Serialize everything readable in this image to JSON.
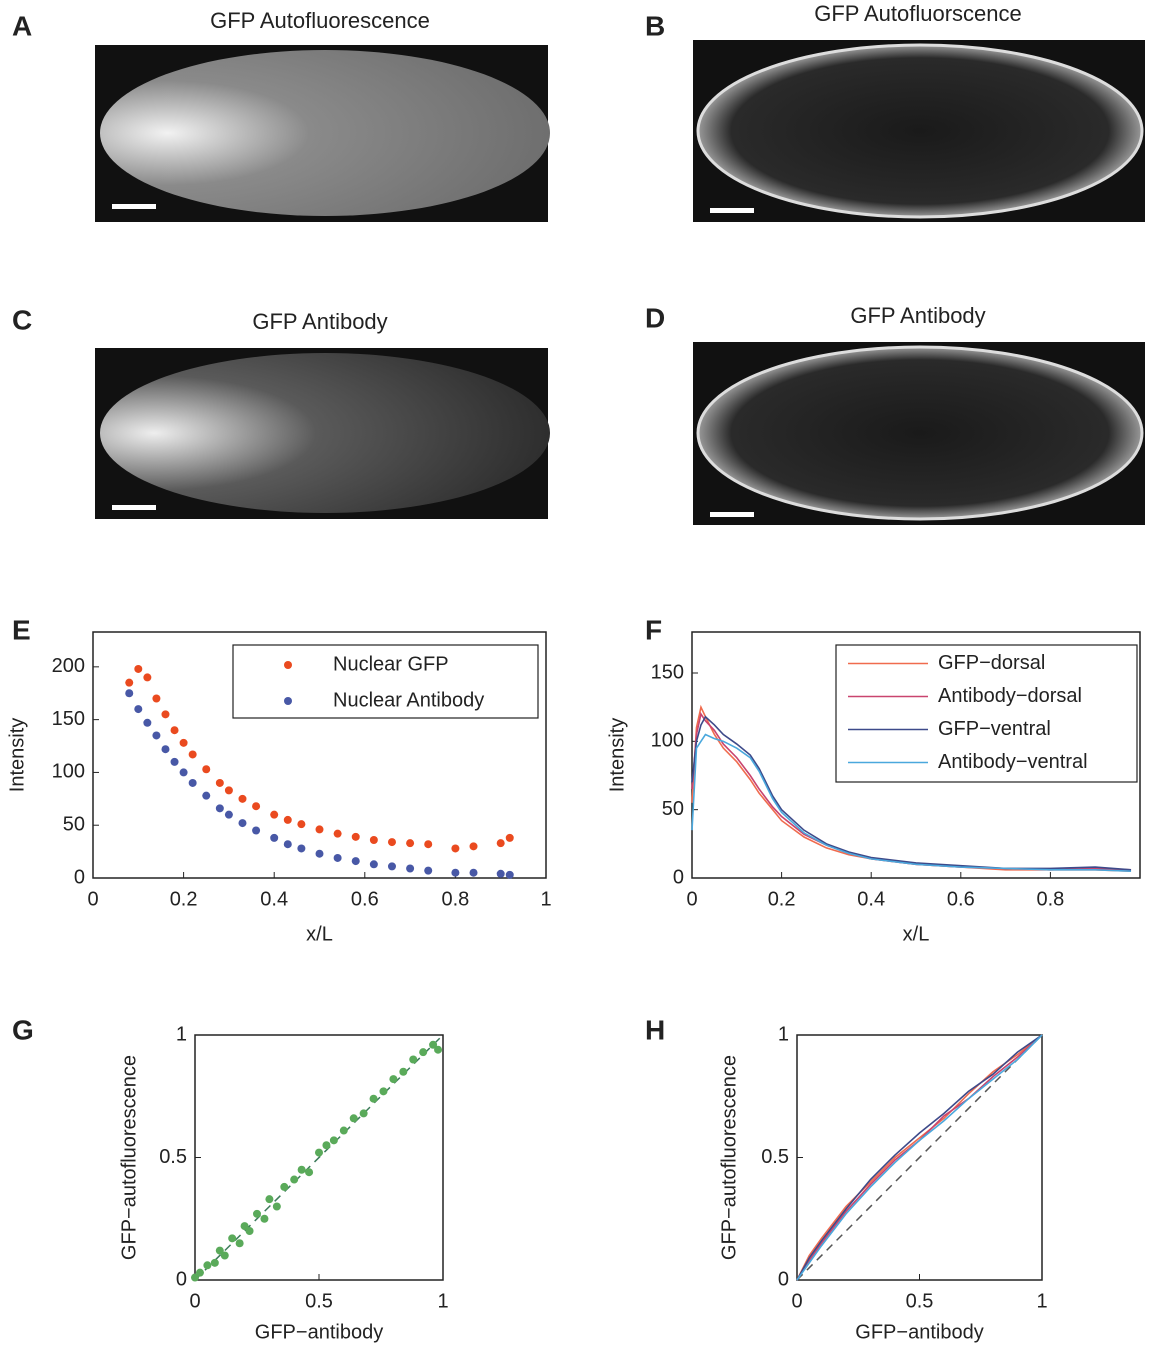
{
  "images": [
    {
      "panel_label": "A",
      "title": "GFP Autofluorescence"
    },
    {
      "panel_label": "B",
      "title": "GFP Autofluorscence"
    },
    {
      "panel_label": "C",
      "title": "GFP Antibody"
    },
    {
      "panel_label": "D",
      "title": "GFP Antibody"
    }
  ],
  "chart_data": [
    {
      "type": "scatter",
      "panel_label": "E",
      "x_label": "x/L",
      "y_label": "Intensity",
      "x": [
        0.08,
        0.1,
        0.12,
        0.14,
        0.16,
        0.18,
        0.2,
        0.22,
        0.25,
        0.28,
        0.3,
        0.33,
        0.36,
        0.4,
        0.43,
        0.46,
        0.5,
        0.54,
        0.58,
        0.62,
        0.66,
        0.7,
        0.74,
        0.8,
        0.84,
        0.9,
        0.92
      ],
      "series": [
        {
          "name": "Nuclear GFP",
          "color": "#ea4a1f",
          "values": [
            185,
            198,
            190,
            170,
            155,
            140,
            128,
            117,
            103,
            90,
            83,
            75,
            68,
            60,
            55,
            51,
            46,
            42,
            39,
            36,
            34,
            33,
            32,
            28,
            30,
            33,
            38
          ]
        },
        {
          "name": "Nuclear Antibody",
          "color": "#4858a6",
          "values": [
            175,
            160,
            147,
            135,
            122,
            110,
            100,
            90,
            78,
            66,
            60,
            52,
            45,
            38,
            32,
            28,
            23,
            19,
            16,
            13,
            11,
            9,
            7,
            5,
            5,
            4,
            3
          ]
        }
      ],
      "xlim": [
        0,
        1
      ],
      "xticks": [
        0,
        0.2,
        0.4,
        0.6,
        0.8,
        1
      ],
      "ylim": [
        0,
        233
      ],
      "yticks": [
        0,
        50,
        100,
        150,
        200
      ],
      "legend": "upper right"
    },
    {
      "type": "line",
      "panel_label": "F",
      "x_label": "x/L",
      "y_label": "Intensity",
      "x": [
        0,
        0.01,
        0.02,
        0.03,
        0.05,
        0.07,
        0.1,
        0.13,
        0.15,
        0.18,
        0.2,
        0.25,
        0.3,
        0.35,
        0.4,
        0.5,
        0.6,
        0.7,
        0.8,
        0.9,
        0.98
      ],
      "series": [
        {
          "name": "GFP−dorsal",
          "color": "#f06b4e",
          "values": [
            55,
            110,
            125,
            118,
            105,
            95,
            85,
            72,
            62,
            50,
            42,
            30,
            22,
            17,
            14,
            10,
            8,
            6,
            6,
            6,
            5
          ]
        },
        {
          "name": "Antibody−dorsal",
          "color": "#c9446f",
          "values": [
            65,
            105,
            120,
            115,
            108,
            98,
            88,
            75,
            65,
            52,
            45,
            32,
            24,
            18,
            14,
            10,
            8,
            7,
            6,
            7,
            6
          ]
        },
        {
          "name": "GFP−ventral",
          "color": "#3d4a8a",
          "values": [
            70,
            100,
            112,
            118,
            112,
            105,
            98,
            90,
            80,
            60,
            50,
            35,
            25,
            19,
            15,
            11,
            9,
            7,
            7,
            8,
            6
          ]
        },
        {
          "name": "Antibody−ventral",
          "color": "#4aa8dd",
          "values": [
            35,
            95,
            100,
            105,
            102,
            100,
            95,
            88,
            78,
            58,
            48,
            33,
            24,
            18,
            14,
            10,
            8,
            7,
            6,
            6,
            5
          ]
        }
      ],
      "xlim": [
        0,
        1
      ],
      "xticks": [
        0,
        0.2,
        0.4,
        0.6,
        0.8
      ],
      "ylim": [
        0,
        180
      ],
      "yticks": [
        0,
        50,
        100,
        150
      ],
      "legend": "upper right"
    },
    {
      "type": "scatter",
      "panel_label": "G",
      "x_label": "GFP−antibody",
      "y_label": "GFP−autofluorescence",
      "x": [
        0,
        0.02,
        0.05,
        0.08,
        0.1,
        0.12,
        0.15,
        0.18,
        0.2,
        0.22,
        0.25,
        0.28,
        0.3,
        0.33,
        0.36,
        0.4,
        0.43,
        0.46,
        0.5,
        0.53,
        0.56,
        0.6,
        0.64,
        0.68,
        0.72,
        0.76,
        0.8,
        0.84,
        0.88,
        0.92,
        0.96,
        0.98
      ],
      "series": [
        {
          "color": "#5aaa5a",
          "values": [
            0.01,
            0.03,
            0.06,
            0.07,
            0.12,
            0.1,
            0.17,
            0.15,
            0.22,
            0.2,
            0.27,
            0.25,
            0.33,
            0.3,
            0.38,
            0.41,
            0.45,
            0.44,
            0.52,
            0.55,
            0.57,
            0.61,
            0.66,
            0.68,
            0.74,
            0.77,
            0.82,
            0.85,
            0.9,
            0.93,
            0.96,
            0.94
          ]
        }
      ],
      "xlim": [
        0,
        1
      ],
      "xticks": [
        0,
        0.5,
        1
      ],
      "ylim": [
        0,
        1
      ],
      "yticks": [
        0,
        0.5,
        1
      ],
      "diagonal": true,
      "diagonal_color": "#3c7a5a"
    },
    {
      "type": "line",
      "panel_label": "H",
      "x_label": "GFP−antibody",
      "y_label": "GFP−autofluorescence",
      "x": [
        0,
        0.05,
        0.1,
        0.2,
        0.3,
        0.4,
        0.5,
        0.6,
        0.7,
        0.8,
        0.9,
        1
      ],
      "series": [
        {
          "color": "#f06b4e",
          "values": [
            0,
            0.1,
            0.17,
            0.3,
            0.4,
            0.5,
            0.58,
            0.66,
            0.76,
            0.85,
            0.92,
            1
          ]
        },
        {
          "color": "#c9446f",
          "values": [
            0,
            0.08,
            0.15,
            0.28,
            0.39,
            0.49,
            0.57,
            0.67,
            0.74,
            0.83,
            0.91,
            1
          ]
        },
        {
          "color": "#3d4a8a",
          "values": [
            0,
            0.09,
            0.16,
            0.29,
            0.41,
            0.51,
            0.6,
            0.68,
            0.77,
            0.84,
            0.93,
            1
          ]
        },
        {
          "color": "#4aa8dd",
          "values": [
            0,
            0.07,
            0.14,
            0.27,
            0.38,
            0.48,
            0.57,
            0.65,
            0.74,
            0.82,
            0.9,
            1
          ]
        }
      ],
      "xlim": [
        0,
        1
      ],
      "xticks": [
        0,
        0.5,
        1
      ],
      "ylim": [
        0,
        1
      ],
      "yticks": [
        0,
        0.5,
        1
      ],
      "diagonal": true,
      "diagonal_color": "#555555"
    }
  ]
}
